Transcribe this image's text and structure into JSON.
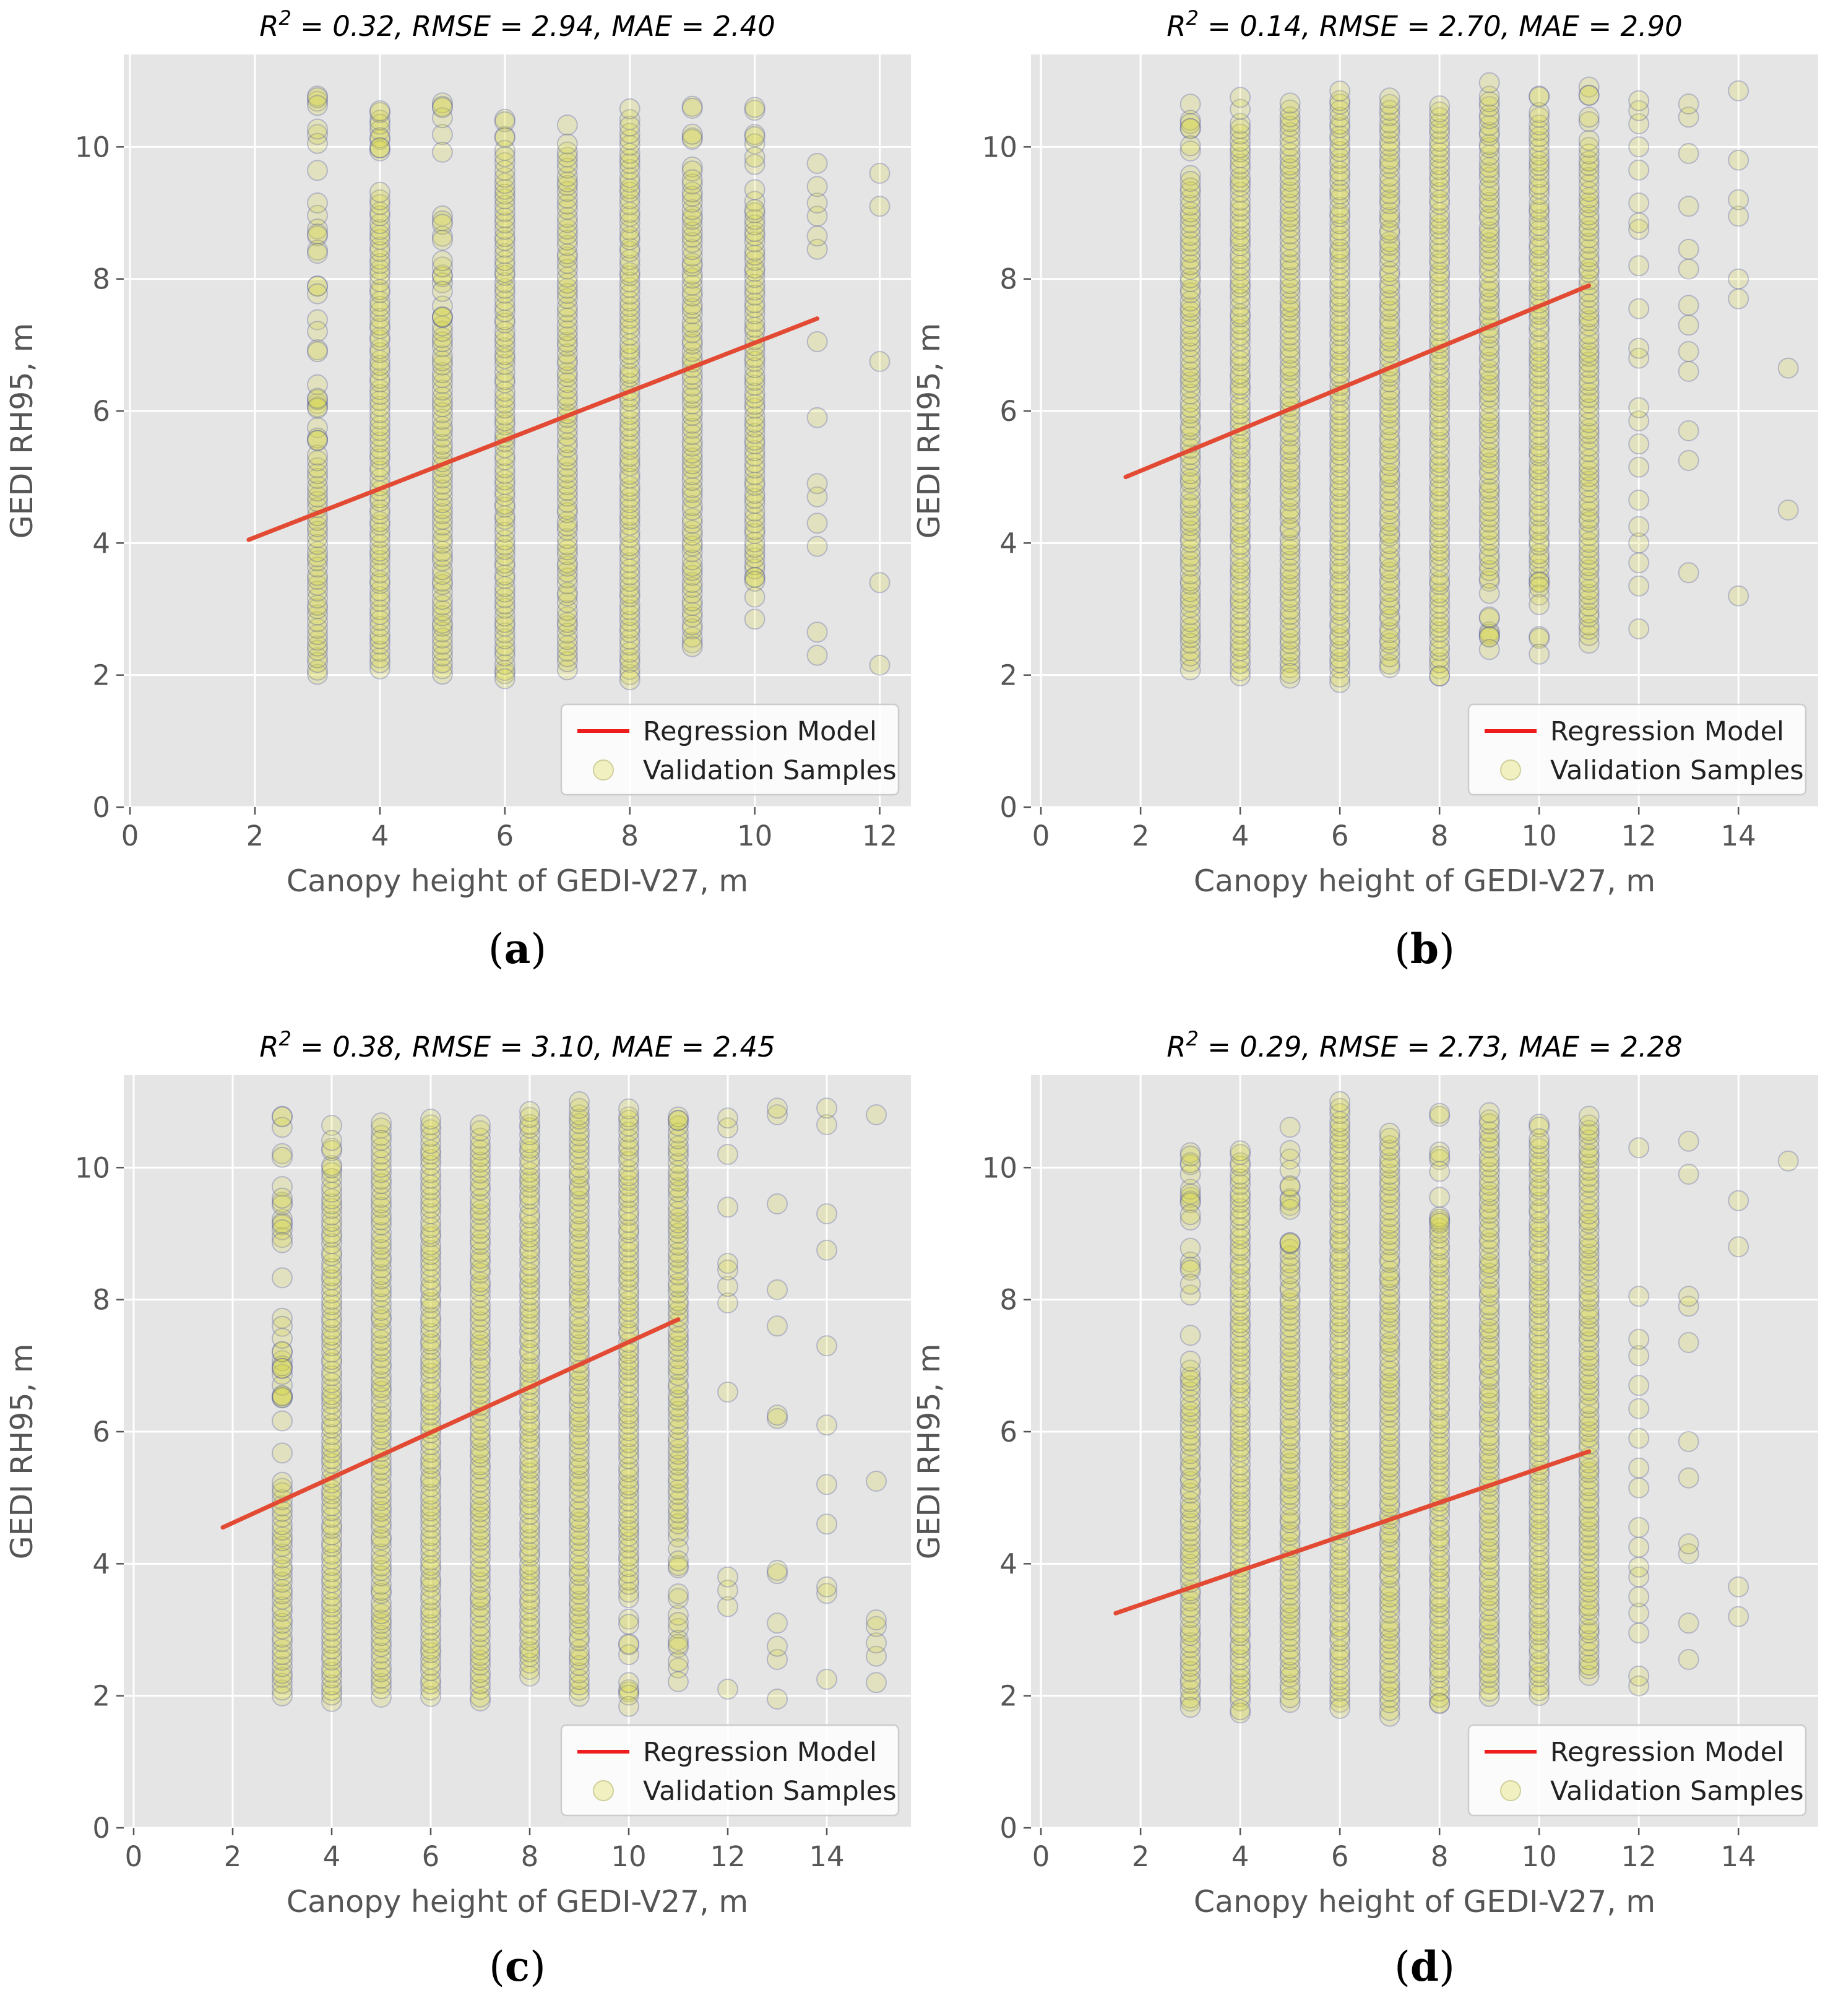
{
  "figure": {
    "colors": {
      "panel_background": "#e5e5e5",
      "grid": "#ffffff",
      "regression_line": "#e24a33",
      "point_fill": "#d8d83a",
      "point_edge": "#3a3f9e"
    },
    "legend_entries": {
      "regression": "Regression Model",
      "samples": "Validation Samples"
    }
  },
  "chart_data": [
    {
      "type": "scatter",
      "panel": "a",
      "caption_label": "a",
      "title": {
        "r2_label": "R",
        "r2_sup": "2",
        "stats": " = 0.32, RMSE = 2.94, MAE = 2.40"
      },
      "xlabel": "Canopy height of GEDI-V27, m",
      "ylabel": "GEDI RH95, m",
      "xlim": [
        -0.1,
        12.5
      ],
      "ylim": [
        0,
        11.4
      ],
      "xticks": [
        0,
        2,
        4,
        6,
        8,
        10,
        12
      ],
      "yticks": [
        0,
        2,
        4,
        6,
        8,
        10
      ],
      "regression": {
        "x": [
          1.9,
          11.0
        ],
        "y": [
          4.05,
          7.4
        ]
      },
      "samples": [
        {
          "x": 3,
          "dense": [
            2.0,
            5.4
          ],
          "range": [
            2.0,
            10.8
          ]
        },
        {
          "x": 4,
          "dense": [
            2.1,
            9.3
          ],
          "range": [
            2.1,
            10.95
          ]
        },
        {
          "x": 5,
          "dense": [
            2.0,
            7.4
          ],
          "range": [
            2.0,
            10.8
          ]
        },
        {
          "x": 6,
          "dense": [
            2.0,
            9.8
          ],
          "range": [
            1.9,
            10.85
          ]
        },
        {
          "x": 7,
          "dense": [
            2.1,
            10.0
          ],
          "range": [
            2.1,
            10.4
          ]
        },
        {
          "x": 8,
          "dense": [
            2.0,
            10.2
          ],
          "range": [
            1.9,
            10.7
          ]
        },
        {
          "x": 9,
          "dense": [
            2.5,
            9.5
          ],
          "range": [
            2.3,
            10.8
          ]
        },
        {
          "x": 10,
          "dense": [
            3.5,
            9.0
          ],
          "range": [
            2.8,
            10.6
          ]
        },
        {
          "x": 11,
          "dense": [
            0,
            0
          ],
          "range": [
            2.3,
            9.8
          ],
          "explicit": [
            2.3,
            2.65,
            3.95,
            4.3,
            4.7,
            4.9,
            5.9,
            7.05,
            8.45,
            8.65,
            8.95,
            9.15,
            9.4,
            9.75
          ]
        },
        {
          "x": 12,
          "dense": [
            0,
            0
          ],
          "range": [
            2.15,
            9.6
          ],
          "explicit": [
            2.15,
            3.4,
            6.75,
            9.1,
            9.6
          ]
        }
      ]
    },
    {
      "type": "scatter",
      "panel": "b",
      "caption_label": "b",
      "title": {
        "r2_label": "R",
        "r2_sup": "2",
        "stats": " = 0.14, RMSE = 2.70, MAE = 2.90"
      },
      "xlabel": "Canopy height of GEDI-V27, m",
      "ylabel": "GEDI RH95, m",
      "xlim": [
        -0.2,
        15.6
      ],
      "ylim": [
        0,
        11.4
      ],
      "xticks": [
        0,
        2,
        4,
        6,
        8,
        10,
        12,
        14
      ],
      "yticks": [
        0,
        2,
        4,
        6,
        8,
        10
      ],
      "regression": {
        "x": [
          1.7,
          11.0
        ],
        "y": [
          5.0,
          7.9
        ]
      },
      "samples": [
        {
          "x": 3,
          "dense": [
            2.1,
            9.3
          ],
          "range": [
            2.1,
            11.0
          ]
        },
        {
          "x": 4,
          "dense": [
            2.0,
            10.4
          ],
          "range": [
            2.0,
            10.8
          ]
        },
        {
          "x": 5,
          "dense": [
            2.1,
            10.6
          ],
          "range": [
            1.7,
            10.7
          ]
        },
        {
          "x": 6,
          "dense": [
            1.9,
            10.8
          ],
          "range": [
            1.9,
            10.9
          ]
        },
        {
          "x": 7,
          "dense": [
            2.1,
            10.7
          ],
          "range": [
            2.1,
            10.9
          ]
        },
        {
          "x": 8,
          "dense": [
            2.0,
            10.6
          ],
          "range": [
            1.9,
            10.8
          ]
        },
        {
          "x": 9,
          "dense": [
            3.4,
            10.8
          ],
          "range": [
            2.0,
            11.0
          ]
        },
        {
          "x": 10,
          "dense": [
            3.5,
            10.6
          ],
          "range": [
            2.1,
            10.9
          ]
        },
        {
          "x": 11,
          "dense": [
            2.5,
            10.0
          ],
          "range": [
            2.5,
            10.95
          ]
        },
        {
          "x": 12,
          "dense": [
            0,
            0
          ],
          "range": [
            2.7,
            10.7
          ],
          "explicit": [
            2.7,
            3.35,
            3.7,
            4.0,
            4.25,
            4.65,
            5.15,
            5.5,
            5.85,
            6.05,
            6.8,
            6.95,
            7.55,
            8.2,
            8.75,
            8.85,
            9.15,
            9.65,
            10.0,
            10.35,
            10.55,
            10.7
          ]
        },
        {
          "x": 13,
          "dense": [
            0,
            0
          ],
          "range": [
            3.55,
            10.65
          ],
          "explicit": [
            3.55,
            5.25,
            5.7,
            6.6,
            6.9,
            7.3,
            7.6,
            8.15,
            8.45,
            9.1,
            9.9,
            10.45,
            10.65
          ]
        },
        {
          "x": 14,
          "dense": [
            0,
            0
          ],
          "range": [
            3.2,
            10.85
          ],
          "explicit": [
            3.2,
            7.7,
            8.0,
            8.95,
            9.2,
            9.8,
            10.85
          ]
        },
        {
          "x": 15,
          "dense": [
            0,
            0
          ],
          "range": [
            4.5,
            6.65
          ],
          "explicit": [
            4.5,
            6.65
          ]
        }
      ]
    },
    {
      "type": "scatter",
      "panel": "c",
      "caption_label": "c",
      "title": {
        "r2_label": "R",
        "r2_sup": "2",
        "stats": " = 0.38, RMSE = 3.10, MAE = 2.45"
      },
      "xlabel": "Canopy height of GEDI-V27, m",
      "ylabel": "GEDI RH95, m",
      "xlim": [
        -0.2,
        15.7
      ],
      "ylim": [
        0,
        11.4
      ],
      "xticks": [
        0,
        2,
        4,
        6,
        8,
        10,
        12,
        14
      ],
      "yticks": [
        0,
        2,
        4,
        6,
        8,
        10
      ],
      "regression": {
        "x": [
          1.8,
          11.0
        ],
        "y": [
          4.55,
          7.7
        ]
      },
      "samples": [
        {
          "x": 3,
          "dense": [
            2.0,
            5.3
          ],
          "range": [
            2.0,
            10.8
          ]
        },
        {
          "x": 4,
          "dense": [
            1.9,
            10.0
          ],
          "range": [
            1.9,
            10.9
          ]
        },
        {
          "x": 5,
          "dense": [
            2.0,
            10.3
          ],
          "range": [
            2.0,
            10.9
          ]
        },
        {
          "x": 6,
          "dense": [
            2.0,
            10.8
          ],
          "range": [
            2.0,
            10.8
          ]
        },
        {
          "x": 7,
          "dense": [
            1.9,
            10.7
          ],
          "range": [
            1.9,
            10.75
          ]
        },
        {
          "x": 8,
          "dense": [
            2.3,
            10.8
          ],
          "range": [
            2.3,
            10.9
          ]
        },
        {
          "x": 9,
          "dense": [
            2.0,
            11.0
          ],
          "range": [
            2.0,
            11.0
          ]
        },
        {
          "x": 10,
          "dense": [
            3.5,
            10.9
          ],
          "range": [
            1.8,
            10.95
          ]
        },
        {
          "x": 11,
          "dense": [
            4.4,
            10.7
          ],
          "range": [
            1.95,
            11.0
          ]
        },
        {
          "x": 12,
          "dense": [
            0,
            0
          ],
          "range": [
            2.1,
            10.8
          ],
          "explicit": [
            2.1,
            3.35,
            3.6,
            3.8,
            6.6,
            7.95,
            8.2,
            8.45,
            8.55,
            9.4,
            10.2,
            10.6,
            10.75
          ]
        },
        {
          "x": 13,
          "dense": [
            0,
            0
          ],
          "range": [
            1.95,
            10.9
          ],
          "explicit": [
            1.95,
            2.55,
            2.75,
            3.1,
            3.85,
            3.9,
            6.2,
            6.25,
            7.6,
            8.15,
            9.45,
            10.8,
            10.9
          ]
        },
        {
          "x": 14,
          "dense": [
            0,
            0
          ],
          "range": [
            2.25,
            10.9
          ],
          "explicit": [
            2.25,
            3.55,
            3.65,
            4.6,
            5.2,
            6.1,
            7.3,
            8.75,
            9.3,
            10.65,
            10.9
          ]
        },
        {
          "x": 15,
          "dense": [
            0,
            0
          ],
          "range": [
            2.2,
            10.8
          ],
          "explicit": [
            2.2,
            2.6,
            2.8,
            3.05,
            3.15,
            5.25,
            10.8
          ]
        }
      ]
    },
    {
      "type": "scatter",
      "panel": "d",
      "caption_label": "d",
      "title": {
        "r2_label": "R",
        "r2_sup": "2",
        "stats": " = 0.29, RMSE = 2.73, MAE = 2.28"
      },
      "xlabel": "Canopy height of GEDI-V27, m",
      "ylabel": "GEDI RH95, m",
      "xlim": [
        -0.2,
        15.6
      ],
      "ylim": [
        0,
        11.4
      ],
      "xticks": [
        0,
        2,
        4,
        6,
        8,
        10,
        12,
        14
      ],
      "yticks": [
        0,
        2,
        4,
        6,
        8,
        10
      ],
      "regression": {
        "x": [
          1.5,
          11.0
        ],
        "y": [
          3.25,
          5.7
        ]
      },
      "samples": [
        {
          "x": 3,
          "dense": [
            1.9,
            7.0
          ],
          "range": [
            1.8,
            10.3
          ]
        },
        {
          "x": 4,
          "dense": [
            1.9,
            10.3
          ],
          "range": [
            1.5,
            10.3
          ]
        },
        {
          "x": 5,
          "dense": [
            1.9,
            8.8
          ],
          "range": [
            1.9,
            10.9
          ]
        },
        {
          "x": 6,
          "dense": [
            1.9,
            11.0
          ],
          "range": [
            1.8,
            11.0
          ]
        },
        {
          "x": 7,
          "dense": [
            1.7,
            10.6
          ],
          "range": [
            1.7,
            10.65
          ]
        },
        {
          "x": 8,
          "dense": [
            1.9,
            9.1
          ],
          "range": [
            1.8,
            10.85
          ]
        },
        {
          "x": 9,
          "dense": [
            2.0,
            10.9
          ],
          "range": [
            2.0,
            10.9
          ]
        },
        {
          "x": 10,
          "dense": [
            2.0,
            10.4
          ],
          "range": [
            2.0,
            10.85
          ]
        },
        {
          "x": 11,
          "dense": [
            2.3,
            10.8
          ],
          "range": [
            2.3,
            10.8
          ]
        },
        {
          "x": 12,
          "dense": [
            0,
            0
          ],
          "range": [
            2.15,
            10.3
          ],
          "explicit": [
            2.15,
            2.3,
            2.95,
            3.25,
            3.5,
            3.8,
            3.95,
            4.25,
            4.55,
            5.15,
            5.45,
            5.9,
            6.35,
            6.7,
            7.15,
            7.4,
            8.05,
            10.3
          ]
        },
        {
          "x": 13,
          "dense": [
            0,
            0
          ],
          "range": [
            2.55,
            10.4
          ],
          "explicit": [
            2.55,
            3.1,
            4.15,
            4.3,
            5.3,
            5.85,
            7.35,
            7.9,
            8.05,
            9.9,
            10.4
          ]
        },
        {
          "x": 14,
          "dense": [
            0,
            0
          ],
          "range": [
            3.2,
            9.5
          ],
          "explicit": [
            3.2,
            3.65,
            8.8,
            9.5
          ]
        },
        {
          "x": 15,
          "dense": [
            0,
            0
          ],
          "range": [
            10.1,
            10.1
          ],
          "explicit": [
            10.1
          ]
        }
      ]
    }
  ]
}
